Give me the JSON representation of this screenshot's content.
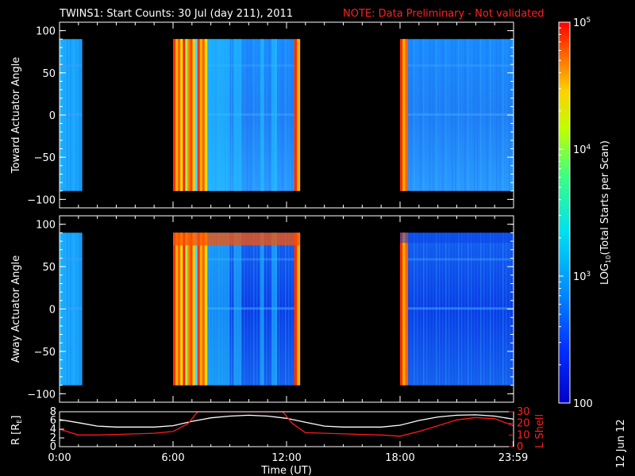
{
  "title": "TWINS1: Start Counts: 30 Jul (day 211), 2011",
  "note": "NOTE: Data Preliminary - Not validated",
  "colors": {
    "background": "#000000",
    "axis": "#ffffff",
    "note": "#ff2020",
    "r_line": "#ffffff",
    "lshell_line": "#ff1a1a"
  },
  "chart_data": [
    {
      "type": "heatmap",
      "name": "toward",
      "ylabel": "Toward Actuator Angle",
      "ylim": [
        -110,
        110
      ],
      "yticks": [
        -100,
        -50,
        0,
        50,
        100
      ],
      "ytick_labels": [
        "−100",
        "−50",
        "0",
        "50",
        "100"
      ],
      "xlim": [
        0,
        24
      ],
      "angle_range": [
        -90,
        90
      ],
      "data_intervals_hours": [
        [
          0.0,
          1.2
        ],
        [
          6.0,
          12.7
        ],
        [
          18.0,
          24.0
        ]
      ],
      "bright_band_hours": [
        [
          6.0,
          7.8
        ],
        [
          12.4,
          12.7
        ],
        [
          18.0,
          18.4
        ]
      ],
      "level_descriptions": "background ~10^3 (blue), edges of passes ~10^5 (red)"
    },
    {
      "type": "heatmap",
      "name": "away",
      "ylabel": "Away Actuator Angle",
      "ylim": [
        -110,
        110
      ],
      "yticks": [
        -100,
        -50,
        0,
        50,
        100
      ],
      "ytick_labels": [
        "−100",
        "−50",
        "0",
        "50",
        "100"
      ],
      "xlim": [
        0,
        24
      ],
      "angle_range": [
        -90,
        90
      ],
      "data_intervals_hours": [
        [
          0.0,
          1.2
        ],
        [
          6.0,
          12.7
        ],
        [
          18.0,
          24.0
        ]
      ],
      "bright_band_hours": [
        [
          6.0,
          7.8
        ],
        [
          12.4,
          12.7
        ],
        [
          18.0,
          18.4
        ]
      ]
    },
    {
      "type": "line",
      "name": "orbit",
      "ylabel_left": "R [R",
      "ylabel_left_sub": "E",
      "ylabel_left_close": "]",
      "ylabel_right": "L Shell",
      "ylim_left": [
        0,
        8
      ],
      "ylim_right": [
        0,
        30
      ],
      "yticks_left": [
        "0",
        "2",
        "4",
        "6",
        "8"
      ],
      "yticks_right": [
        "0",
        "10",
        "20",
        "30"
      ],
      "xlabel": "Time (UT)",
      "xlim": [
        0,
        24
      ],
      "xtick_labels": [
        "0:00",
        "6:00",
        "12:00",
        "18:00",
        "23:59"
      ],
      "xtick_hours": [
        0,
        6,
        12,
        18,
        23.98
      ],
      "series": [
        {
          "name": "R",
          "x": [
            0,
            1,
            2,
            3,
            4,
            5,
            6,
            7,
            8,
            9,
            10,
            11,
            12,
            13,
            14,
            15,
            16,
            17,
            18,
            19,
            20,
            21,
            22,
            23,
            24
          ],
          "values": [
            6.2,
            5.5,
            4.7,
            4.5,
            4.5,
            4.5,
            4.8,
            5.8,
            6.6,
            7.0,
            7.2,
            7.0,
            6.5,
            5.6,
            4.7,
            4.5,
            4.5,
            4.5,
            4.9,
            6.0,
            6.8,
            7.2,
            7.3,
            7.0,
            6.3
          ]
        },
        {
          "name": "L Shell",
          "x": [
            0,
            1,
            2,
            3,
            4,
            5,
            6,
            6.8,
            7.3,
            11.8,
            12.3,
            13,
            14,
            15,
            16,
            17,
            18,
            19,
            20,
            21,
            22,
            23,
            24
          ],
          "values": [
            15,
            10,
            10,
            10.5,
            11,
            11.5,
            13,
            20,
            30,
            30,
            20,
            12,
            11.5,
            11,
            10.5,
            10,
            9,
            13,
            18,
            23,
            25,
            24,
            18
          ]
        }
      ]
    }
  ],
  "colorbar": {
    "label": "LOG",
    "label_sub": "10",
    "label_rest": "(Total Starts per Scan)",
    "range": [
      100,
      100000
    ],
    "ticks": [
      {
        "value": 100,
        "base": "100",
        "exp": ""
      },
      {
        "value": 1000,
        "base": "10",
        "exp": "3"
      },
      {
        "value": 10000,
        "base": "10",
        "exp": "4"
      },
      {
        "value": 100000,
        "base": "10",
        "exp": "5"
      }
    ]
  },
  "date_stamp": "12 Jun 12"
}
